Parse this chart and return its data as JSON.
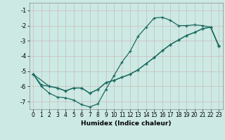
{
  "xlabel": "Humidex (Indice chaleur)",
  "ylabel": "",
  "bg_color": "#cce9e4",
  "grid_color": "#b0c8c4",
  "line_color": "#1a6b60",
  "xlim": [
    -0.5,
    23.5
  ],
  "ylim": [
    -7.5,
    -0.5
  ],
  "yticks": [
    -7,
    -6,
    -5,
    -4,
    -3,
    -2,
    -1
  ],
  "xticks": [
    0,
    1,
    2,
    3,
    4,
    5,
    6,
    7,
    8,
    9,
    10,
    11,
    12,
    13,
    14,
    15,
    16,
    17,
    18,
    19,
    20,
    21,
    22,
    23
  ],
  "line1_x": [
    0,
    1,
    2,
    3,
    4,
    5,
    6,
    7,
    8,
    9,
    10,
    11,
    12,
    13,
    14,
    15,
    16,
    17,
    18,
    19,
    20,
    21,
    22,
    23
  ],
  "line1_y": [
    -5.2,
    -6.0,
    -6.45,
    -6.7,
    -6.75,
    -6.9,
    -7.2,
    -7.35,
    -7.15,
    -6.2,
    -5.3,
    -4.4,
    -3.7,
    -2.7,
    -2.1,
    -1.5,
    -1.45,
    -1.65,
    -2.0,
    -2.0,
    -1.95,
    -2.0,
    -2.1,
    -3.3
  ],
  "line2_x": [
    0,
    2,
    3,
    4,
    5,
    6,
    7,
    8,
    9,
    10,
    11,
    12,
    13,
    14,
    15,
    16,
    17,
    18,
    19,
    20,
    21,
    22,
    23
  ],
  "line2_y": [
    -5.2,
    -6.0,
    -6.1,
    -6.3,
    -6.1,
    -6.1,
    -6.45,
    -6.2,
    -5.75,
    -5.6,
    -5.4,
    -5.2,
    -4.9,
    -4.5,
    -4.1,
    -3.65,
    -3.25,
    -2.95,
    -2.65,
    -2.45,
    -2.2,
    -2.1,
    -3.35
  ],
  "line3_x": [
    0,
    1,
    2,
    3,
    4,
    5,
    6,
    7,
    8,
    9,
    10,
    11,
    12,
    13,
    14,
    15,
    16,
    17,
    18,
    19,
    20,
    21,
    22,
    23
  ],
  "line3_y": [
    -5.2,
    -5.9,
    -6.0,
    -6.1,
    -6.3,
    -6.1,
    -6.1,
    -6.45,
    -6.2,
    -5.75,
    -5.6,
    -5.4,
    -5.2,
    -4.9,
    -4.5,
    -4.1,
    -3.65,
    -3.25,
    -2.95,
    -2.65,
    -2.45,
    -2.2,
    -2.1,
    -3.35
  ]
}
